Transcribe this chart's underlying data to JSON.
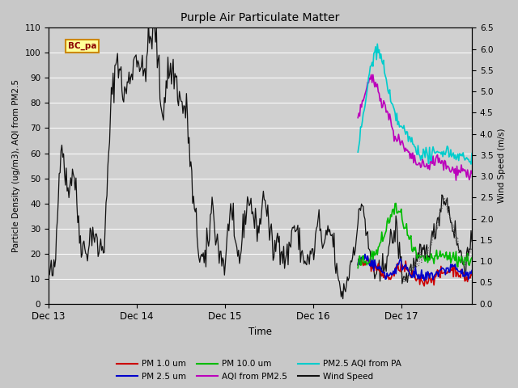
{
  "title": "Purple Air Particulate Matter",
  "xlabel": "Time",
  "ylabel_left": "Particle Density (ug/m3), AQI from PM2.5",
  "ylabel_right": "Wind Speed (m/s)",
  "ylim_left": [
    0,
    110
  ],
  "ylim_right": [
    0.0,
    6.5
  ],
  "yticks_left": [
    0,
    10,
    20,
    30,
    40,
    50,
    60,
    70,
    80,
    90,
    100,
    110
  ],
  "yticks_right": [
    0.0,
    0.5,
    1.0,
    1.5,
    2.0,
    2.5,
    3.0,
    3.5,
    4.0,
    4.5,
    5.0,
    5.5,
    6.0,
    6.5
  ],
  "xtick_labels": [
    "Dec 13",
    "Dec 14",
    "Dec 15",
    "Dec 16",
    "Dec 17"
  ],
  "xtick_pos": [
    0,
    1,
    2,
    3,
    4
  ],
  "xlim": [
    0,
    4.8
  ],
  "fig_bg": "#c8c8c8",
  "plot_bg": "#d0d0d0",
  "grid_color": "#ffffff",
  "bc_pa_box_color": "#ffff99",
  "bc_pa_border_color": "#cc8800",
  "wind_color": "#111111",
  "pm1_color": "#cc0000",
  "pm25_color": "#0000cc",
  "pm10_color": "#00bb00",
  "aqi_color": "#bb00bb",
  "aqi_pa_color": "#00cccc",
  "wind_right_color": "#555555"
}
